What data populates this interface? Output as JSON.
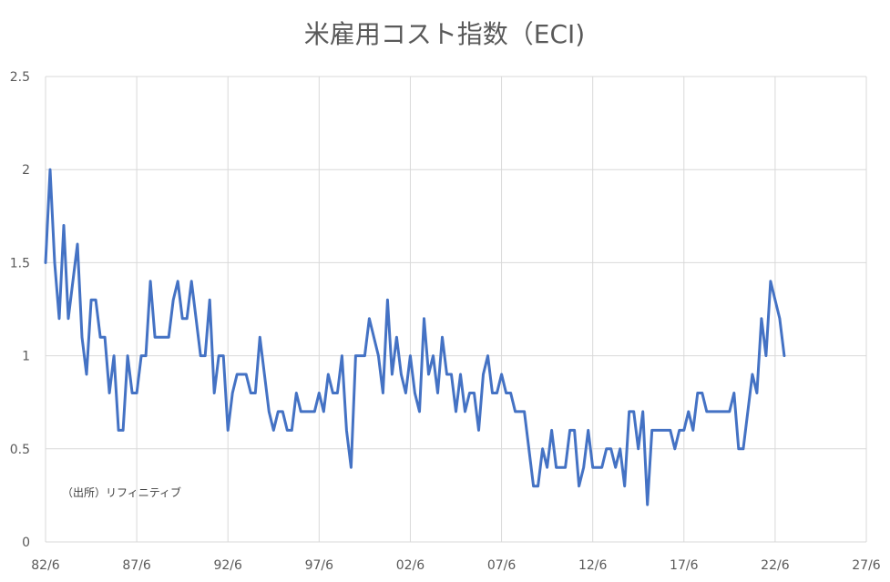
{
  "chart_data": {
    "type": "line",
    "title": "米雇用コスト指数（ECI)",
    "xlabel": "",
    "ylabel": "",
    "ylim": [
      0,
      2.5
    ],
    "yticks": [
      "0",
      "0.5",
      "1",
      "1.5",
      "2",
      "2.5"
    ],
    "xticks": [
      "82/6",
      "87/6",
      "92/6",
      "97/6",
      "02/6",
      "07/6",
      "12/6",
      "17/6",
      "22/6",
      "27/6"
    ],
    "x_range": [
      "1982-06",
      "2027-06"
    ],
    "x_frequency": "quarterly",
    "x_start": "1982-06",
    "grid": true,
    "legend": "none",
    "annotation": "（出所）リフィニティブ",
    "colors": {
      "series": "#4472c4",
      "grid": "#d9d9d9",
      "text": "#595959"
    },
    "series": [
      {
        "values": [
          1.5,
          2.0,
          1.5,
          1.2,
          1.7,
          1.2,
          1.4,
          1.6,
          1.1,
          0.9,
          1.3,
          1.3,
          1.1,
          1.1,
          0.8,
          1.0,
          0.6,
          0.6,
          1.0,
          0.8,
          0.8,
          1.0,
          1.0,
          1.4,
          1.1,
          1.1,
          1.1,
          1.1,
          1.3,
          1.4,
          1.2,
          1.2,
          1.4,
          1.2,
          1.0,
          1.0,
          1.3,
          0.8,
          1.0,
          1.0,
          0.6,
          0.8,
          0.9,
          0.9,
          0.9,
          0.8,
          0.8,
          1.1,
          0.9,
          0.7,
          0.6,
          0.7,
          0.7,
          0.6,
          0.6,
          0.8,
          0.7,
          0.7,
          0.7,
          0.7,
          0.8,
          0.7,
          0.9,
          0.8,
          0.8,
          1.0,
          0.6,
          0.4,
          1.0,
          1.0,
          1.0,
          1.2,
          1.1,
          1.0,
          0.8,
          1.3,
          0.9,
          1.1,
          0.9,
          0.8,
          1.0,
          0.8,
          0.7,
          1.2,
          0.9,
          1.0,
          0.8,
          1.1,
          0.9,
          0.9,
          0.7,
          0.9,
          0.7,
          0.8,
          0.8,
          0.6,
          0.9,
          1.0,
          0.8,
          0.8,
          0.9,
          0.8,
          0.8,
          0.7,
          0.7,
          0.7,
          0.5,
          0.3,
          0.3,
          0.5,
          0.4,
          0.6,
          0.4,
          0.4,
          0.4,
          0.6,
          0.6,
          0.3,
          0.4,
          0.6,
          0.4,
          0.4,
          0.4,
          0.5,
          0.5,
          0.4,
          0.5,
          0.3,
          0.7,
          0.7,
          0.5,
          0.7,
          0.2,
          0.6,
          0.6,
          0.6,
          0.6,
          0.6,
          0.5,
          0.6,
          0.6,
          0.7,
          0.6,
          0.8,
          0.8,
          0.7,
          0.7,
          0.7,
          0.7,
          0.7,
          0.7,
          0.8,
          0.5,
          0.5,
          0.7,
          0.9,
          0.8,
          1.2,
          1.0,
          1.4,
          1.3,
          1.2,
          1.0
        ]
      }
    ]
  }
}
